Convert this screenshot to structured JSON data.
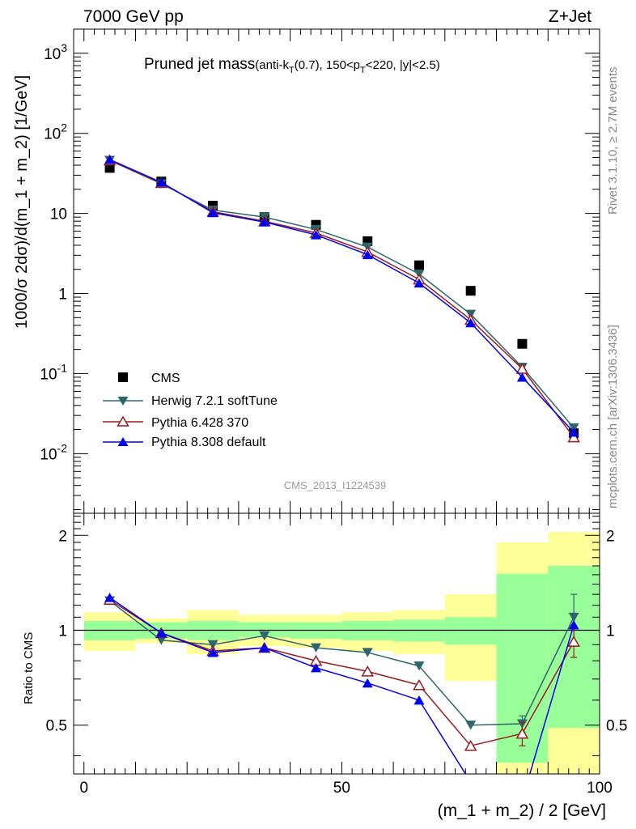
{
  "header": {
    "beam_label": "7000 GeV pp",
    "process_label": "Z+Jet",
    "title_main": "Pruned jet mass",
    "title_sub_1": "(anti-k",
    "title_sub_sub1": "T",
    "title_sub_2": "(0.7), 150<p",
    "title_sub_sub2": "T",
    "title_sub_3": "<220, |y|<2.5)",
    "rivet_label": "Rivet 3.1.10, ≥ 2.7M events",
    "mcplots_label": "mcplots.cern.ch [arXiv:1306.3436]",
    "analysis_label": "CMS_2013_I1224539"
  },
  "axes": {
    "upper_ylabel": "1000/σ 2dσ)/d(m_1 + m_2) [1/GeV]",
    "lower_ylabel": "Ratio to CMS",
    "xlabel": "(m_1 + m_2) / 2 [GeV]",
    "upper_ytick_labels": [
      {
        "base": "10",
        "exp": "-2"
      },
      {
        "base": "10",
        "exp": "-1"
      },
      {
        "base": "1",
        "exp": ""
      },
      {
        "base": "10",
        "exp": ""
      },
      {
        "base": "10",
        "exp": "2"
      },
      {
        "base": "10",
        "exp": "3"
      }
    ],
    "ratio_ytick_labels": [
      "0.5",
      "1",
      "2"
    ],
    "xtick_labels": [
      "0",
      "50",
      "100"
    ]
  },
  "legend": {
    "cms": "CMS",
    "herwig": "Herwig 7.2.1 softTune",
    "pythia6": "Pythia 6.428 370",
    "pythia8": "Pythia 8.308 default"
  },
  "colors": {
    "cms": "#000000",
    "herwig": "#2e6669",
    "pythia6": "#9a1a22",
    "pythia8": "#0000ee",
    "band_inner": "#99ff99",
    "band_outer": "#ffff99"
  },
  "chart_data": [
    {
      "type": "scatter",
      "panel": "main",
      "yscale": "log",
      "xlim": [
        -2,
        100
      ],
      "ylim": [
        0.0018,
        2000
      ],
      "x": [
        5,
        15,
        25,
        35,
        45,
        55,
        65,
        75,
        85,
        95
      ],
      "series": [
        {
          "name": "CMS",
          "values": [
            37,
            25,
            12.5,
            9,
            7.2,
            4.5,
            2.25,
            1.08,
            0.235,
            0.018
          ]
        },
        {
          "name": "Herwig 7.2.1 softTune",
          "values": [
            46,
            23.5,
            11,
            9.0,
            6.3,
            3.8,
            1.75,
            0.55,
            0.12,
            0.021
          ]
        },
        {
          "name": "Pythia 6.428 370",
          "values": [
            46,
            24,
            10.5,
            8.0,
            5.7,
            3.3,
            1.5,
            0.47,
            0.115,
            0.016
          ]
        },
        {
          "name": "Pythia 8.308 default",
          "values": [
            47,
            24.5,
            10.2,
            7.8,
            5.4,
            3.05,
            1.35,
            0.43,
            0.09,
            0.0185
          ]
        }
      ]
    },
    {
      "type": "line",
      "panel": "ratio",
      "yscale": "log",
      "xlim": [
        -2,
        100
      ],
      "ylim": [
        0.35,
        2.35
      ],
      "x": [
        5,
        15,
        25,
        35,
        45,
        55,
        65,
        75,
        85,
        95
      ],
      "bands": {
        "bin_edges": [
          0,
          10,
          20,
          30,
          40,
          50,
          60,
          70,
          80,
          90,
          100
        ],
        "inner_low": [
          0.93,
          0.94,
          0.93,
          0.95,
          0.94,
          0.93,
          0.92,
          0.9,
          0.38,
          0.49
        ],
        "inner_high": [
          1.07,
          1.06,
          1.07,
          1.06,
          1.06,
          1.07,
          1.08,
          1.1,
          1.51,
          1.6
        ],
        "outer_low": [
          0.86,
          0.91,
          0.84,
          0.89,
          0.88,
          0.86,
          0.84,
          0.69,
          0.3,
          0.3
        ],
        "outer_high": [
          1.14,
          1.09,
          1.16,
          1.12,
          1.12,
          1.14,
          1.16,
          1.3,
          1.9,
          2.05
        ]
      },
      "series": [
        {
          "name": "Herwig 7.2.1 softTune",
          "values": [
            1.24,
            0.93,
            0.9,
            0.96,
            0.88,
            0.85,
            0.77,
            0.5,
            0.505,
            1.1
          ],
          "errors": [
            0,
            0,
            0,
            0,
            0,
            0,
            0,
            0,
            0.03,
            0.2
          ]
        },
        {
          "name": "Pythia 6.428 370",
          "values": [
            1.25,
            0.98,
            0.86,
            0.88,
            0.8,
            0.74,
            0.67,
            0.43,
            0.47,
            0.92
          ],
          "errors": [
            0,
            0,
            0,
            0,
            0,
            0,
            0,
            0,
            0.04,
            0.1
          ]
        },
        {
          "name": "Pythia 8.308 default",
          "values": [
            1.27,
            0.98,
            0.85,
            0.88,
            0.76,
            0.68,
            0.6,
            0.33,
            0.29,
            1.04
          ],
          "errors": [
            0,
            0,
            0,
            0,
            0,
            0,
            0,
            0,
            0,
            0
          ]
        }
      ]
    }
  ]
}
